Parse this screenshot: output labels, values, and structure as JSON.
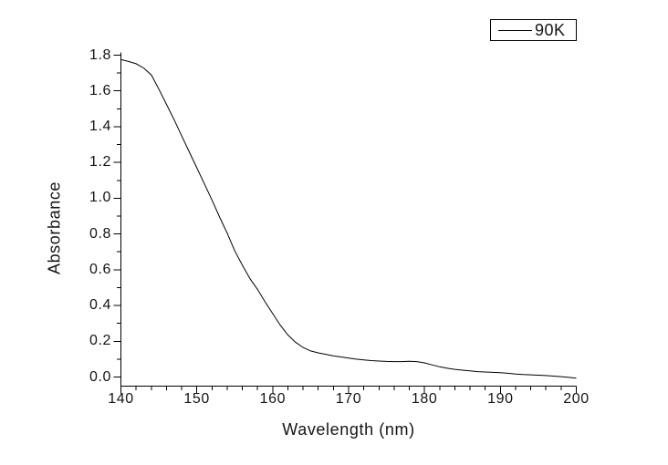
{
  "figure": {
    "background": "#ffffff",
    "axis_color": "#000000",
    "text_color": "#151515"
  },
  "chart_data": {
    "type": "line",
    "title": "",
    "xlabel": "Wavelength (nm)",
    "ylabel": "Absorbance",
    "xlim": [
      140,
      200
    ],
    "ylim": [
      -0.05,
      1.85
    ],
    "x_ticks": [
      140,
      150,
      160,
      170,
      180,
      190,
      200
    ],
    "x_minor_step": 2,
    "y_ticks": [
      0.0,
      0.2,
      0.4,
      0.6,
      0.8,
      1.0,
      1.2,
      1.4,
      1.6,
      1.8
    ],
    "y_minor_step": 0.1,
    "y_tick_decimals": 1,
    "grid": false,
    "legend": {
      "position": "top-right",
      "entries": [
        "90K"
      ]
    },
    "series": [
      {
        "name": "90K",
        "color": "#000000",
        "x": [
          140,
          141,
          142,
          143,
          144,
          145,
          146,
          147,
          148,
          149,
          150,
          151,
          152,
          153,
          154,
          155,
          156,
          157,
          158,
          159,
          160,
          161,
          162,
          163,
          164,
          165,
          166,
          167,
          168,
          169,
          170,
          171,
          172,
          173,
          174,
          175,
          176,
          177,
          178,
          179,
          180,
          181,
          182,
          183,
          184,
          185,
          186,
          187,
          188,
          189,
          190,
          191,
          192,
          193,
          194,
          195,
          196,
          197,
          198,
          199,
          200
        ],
        "y": [
          1.775,
          1.765,
          1.752,
          1.728,
          1.69,
          1.61,
          1.525,
          1.44,
          1.35,
          1.26,
          1.17,
          1.08,
          0.99,
          0.895,
          0.805,
          0.705,
          0.625,
          0.55,
          0.49,
          0.42,
          0.355,
          0.29,
          0.235,
          0.195,
          0.165,
          0.146,
          0.135,
          0.127,
          0.118,
          0.112,
          0.106,
          0.1,
          0.096,
          0.092,
          0.089,
          0.087,
          0.086,
          0.086,
          0.088,
          0.086,
          0.079,
          0.068,
          0.057,
          0.049,
          0.043,
          0.038,
          0.034,
          0.03,
          0.028,
          0.026,
          0.024,
          0.021,
          0.017,
          0.014,
          0.012,
          0.01,
          0.008,
          0.005,
          0.002,
          -0.002,
          -0.006
        ]
      }
    ]
  }
}
